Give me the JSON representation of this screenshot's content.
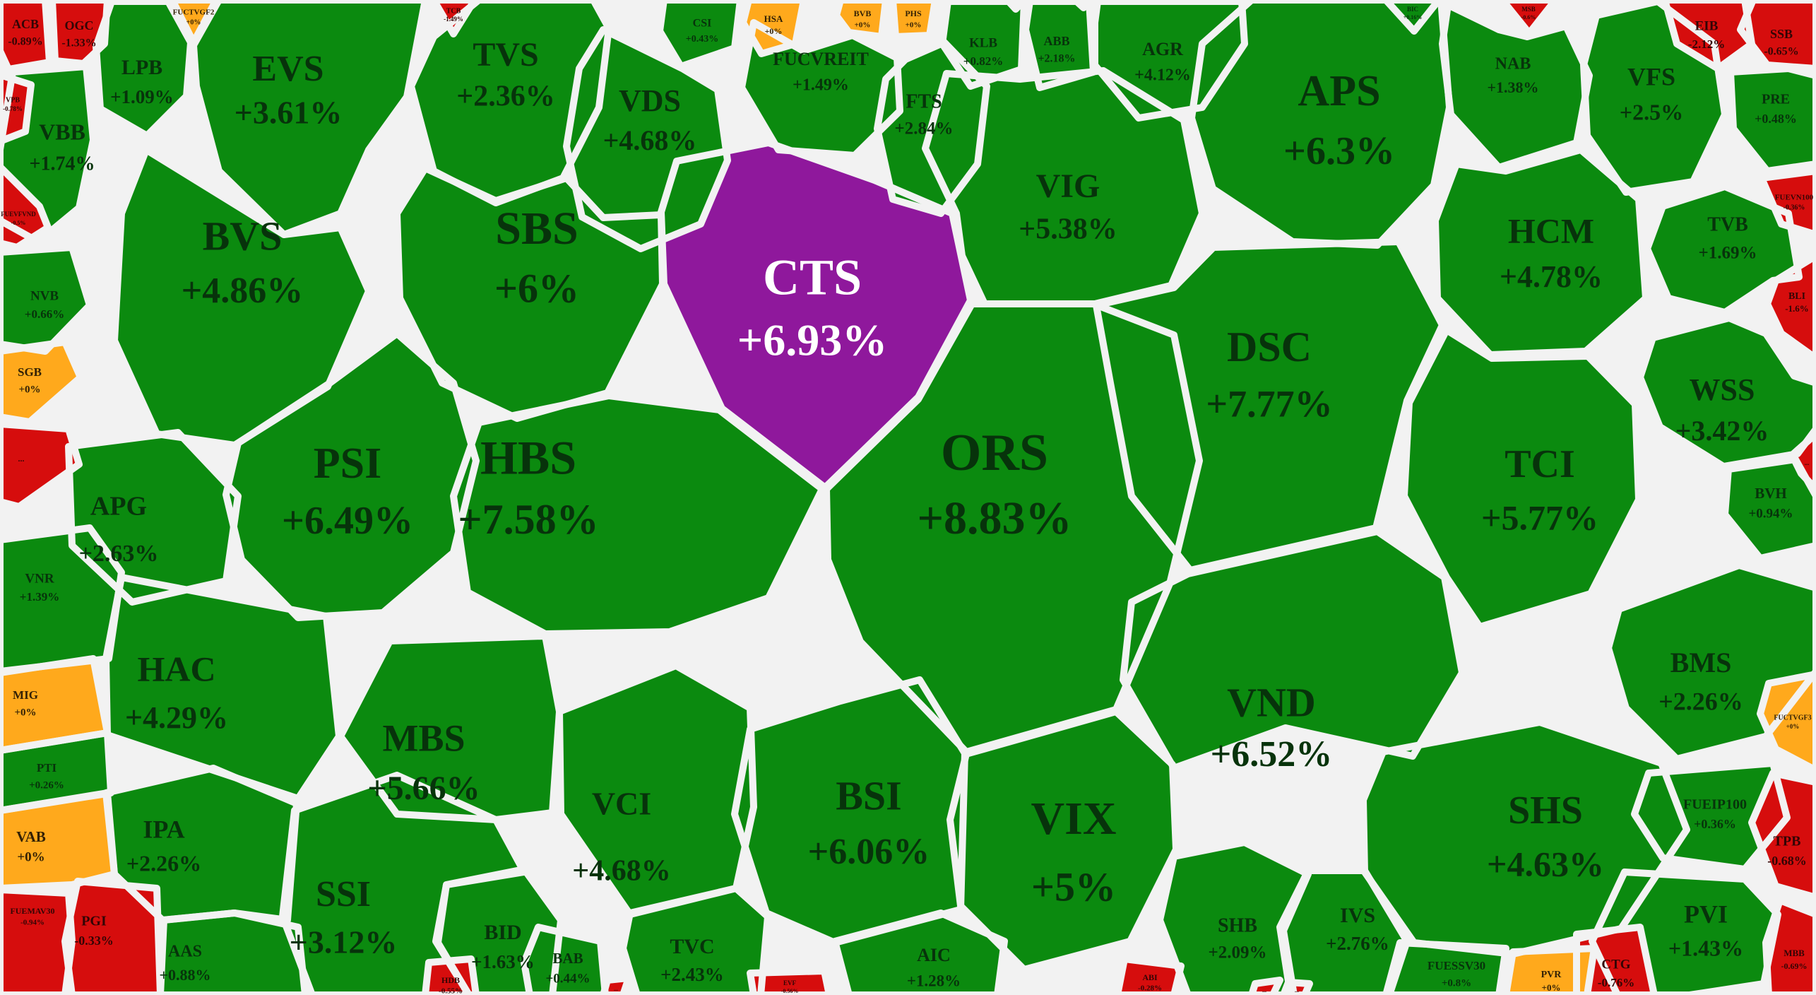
{
  "chart_data": {
    "type": "heatmap",
    "subtype": "voronoi-treemap-stock-heatmap",
    "colors": {
      "up": "#0b8a0f",
      "down": "#d60d0d",
      "unchanged": "#ffa91c",
      "ceiling": "#8f189c",
      "border": "#f2f2f2"
    },
    "text_colors": {
      "up": "#07330b",
      "down": "#330505",
      "unchanged": "#332105",
      "ceiling": "#ffffff"
    },
    "cells": [
      {
        "ticker": "CTS",
        "change": "+6.93%",
        "state": "ceiling"
      },
      {
        "ticker": "ORS",
        "change": "+8.83%",
        "state": "up"
      },
      {
        "ticker": "HBS",
        "change": "+7.58%",
        "state": "up"
      },
      {
        "ticker": "SBS",
        "change": "+6%",
        "state": "up"
      },
      {
        "ticker": "PSI",
        "change": "+6.49%",
        "state": "up"
      },
      {
        "ticker": "BVS",
        "change": "+4.86%",
        "state": "up"
      },
      {
        "ticker": "EVS",
        "change": "+3.61%",
        "state": "up"
      },
      {
        "ticker": "TVS",
        "change": "+2.36%",
        "state": "up"
      },
      {
        "ticker": "VDS",
        "change": "+4.68%",
        "state": "up"
      },
      {
        "ticker": "VIG",
        "change": "+5.38%",
        "state": "up"
      },
      {
        "ticker": "APS",
        "change": "+6.3%",
        "state": "up"
      },
      {
        "ticker": "DSC",
        "change": "+7.77%",
        "state": "up"
      },
      {
        "ticker": "HCM",
        "change": "+4.78%",
        "state": "up"
      },
      {
        "ticker": "TCI",
        "change": "+5.77%",
        "state": "up"
      },
      {
        "ticker": "VND",
        "change": "+6.52%",
        "state": "up"
      },
      {
        "ticker": "WSS",
        "change": "+3.42%",
        "state": "up"
      },
      {
        "ticker": "MBS",
        "change": "+5.66%",
        "state": "up"
      },
      {
        "ticker": "VIX",
        "change": "+5%",
        "state": "up"
      },
      {
        "ticker": "BSI",
        "change": "+6.06%",
        "state": "up"
      },
      {
        "ticker": "SHS",
        "change": "+4.63%",
        "state": "up"
      },
      {
        "ticker": "VCI",
        "change": "+4.68%",
        "state": "up"
      },
      {
        "ticker": "SSI",
        "change": "+3.12%",
        "state": "up"
      },
      {
        "ticker": "HAC",
        "change": "+4.29%",
        "state": "up"
      },
      {
        "ticker": "APG",
        "change": "+2.63%",
        "state": "up"
      },
      {
        "ticker": "IPA",
        "change": "+2.26%",
        "state": "up"
      },
      {
        "ticker": "VBB",
        "change": "+1.74%",
        "state": "up"
      },
      {
        "ticker": "LPB",
        "change": "+1.09%",
        "state": "up"
      },
      {
        "ticker": "FUCVREIT",
        "change": "+1.49%",
        "state": "up"
      },
      {
        "ticker": "FTS",
        "change": "+2.84%",
        "state": "up"
      },
      {
        "ticker": "AGR",
        "change": "+4.12%",
        "state": "up"
      },
      {
        "ticker": "NAB",
        "change": "+1.38%",
        "state": "up"
      },
      {
        "ticker": "VFS",
        "change": "+2.5%",
        "state": "up"
      },
      {
        "ticker": "TVB",
        "change": "+1.69%",
        "state": "up"
      },
      {
        "ticker": "BMS",
        "change": "+2.26%",
        "state": "up"
      },
      {
        "ticker": "AIC",
        "change": "+1.28%",
        "state": "up"
      },
      {
        "ticker": "TVC",
        "change": "+2.43%",
        "state": "up"
      },
      {
        "ticker": "BID",
        "change": "+1.63%",
        "state": "up"
      },
      {
        "ticker": "SHB",
        "change": "+2.09%",
        "state": "up"
      },
      {
        "ticker": "IVS",
        "change": "+2.76%",
        "state": "up"
      },
      {
        "ticker": "PVI",
        "change": "+1.43%",
        "state": "up"
      },
      {
        "ticker": "AAS",
        "change": "+0.88%",
        "state": "up"
      },
      {
        "ticker": "PGI",
        "change": "-0.33%",
        "state": "down"
      },
      {
        "ticker": "VNR",
        "change": "+1.39%",
        "state": "up"
      },
      {
        "ticker": "NVB",
        "change": "+0.66%",
        "state": "up"
      },
      {
        "ticker": "KLB",
        "change": "+0.82%",
        "state": "up"
      },
      {
        "ticker": "ABB",
        "change": "+2.18%",
        "state": "up"
      },
      {
        "ticker": "BVH",
        "change": "+0.94%",
        "state": "up"
      },
      {
        "ticker": "PRE",
        "change": "+0.48%",
        "state": "up"
      },
      {
        "ticker": "FUEIP100",
        "change": "+0.36%",
        "state": "up"
      },
      {
        "ticker": "FUESSV30",
        "change": "+0.8%",
        "state": "up"
      },
      {
        "ticker": "ACB",
        "change": "-0.89%",
        "state": "down"
      },
      {
        "ticker": "OGC",
        "change": "-1.33%",
        "state": "down"
      },
      {
        "ticker": "EIB",
        "change": "-2.12%",
        "state": "down"
      },
      {
        "ticker": "SSB",
        "change": "-0.65%",
        "state": "down"
      },
      {
        "ticker": "TPB",
        "change": "-0.68%",
        "state": "down"
      },
      {
        "ticker": "CTG",
        "change": "-0.76%",
        "state": "down"
      },
      {
        "ticker": "MBB",
        "change": "-0.69%",
        "state": "down"
      },
      {
        "ticker": "CSI",
        "change": "+0.43%",
        "state": "up"
      },
      {
        "ticker": "BAB",
        "change": "+0.44%",
        "state": "up"
      },
      {
        "ticker": "PTI",
        "change": "+0.26%",
        "state": "up"
      },
      {
        "ticker": "SGB",
        "change": "+0%",
        "state": "unchanged"
      },
      {
        "ticker": "MIG",
        "change": "+0%",
        "state": "unchanged"
      },
      {
        "ticker": "VAB",
        "change": "+0%",
        "state": "unchanged"
      },
      {
        "ticker": "HSA",
        "change": "+0%",
        "state": "unchanged"
      },
      {
        "ticker": "BVB",
        "change": "+0%",
        "state": "unchanged"
      },
      {
        "ticker": "PHS",
        "change": "+0%",
        "state": "unchanged"
      },
      {
        "ticker": "PVR",
        "change": "+0%",
        "state": "unchanged"
      },
      {
        "ticker": "FUCTVGF2",
        "change": "+0%",
        "state": "unchanged"
      },
      {
        "ticker": "FUCTVGF3",
        "change": "+0%",
        "state": "unchanged"
      },
      {
        "ticker": "VPB",
        "change": "-0.78%",
        "state": "down"
      },
      {
        "ticker": "FUEVFVND",
        "change": "-0.5%",
        "state": "down"
      },
      {
        "ticker": "FUEMAV30",
        "change": "-0.94%",
        "state": "down"
      },
      {
        "ticker": "FUEVN100",
        "change": "-0.36%",
        "state": "down"
      },
      {
        "ticker": "TCB",
        "change": "-1.49%",
        "state": "down"
      },
      {
        "ticker": "BIC",
        "change": "+0.16%",
        "state": "up"
      },
      {
        "ticker": "MSB",
        "change": "-0.6%",
        "state": "down"
      },
      {
        "ticker": "BLI",
        "change": "-1.6%",
        "state": "down"
      },
      {
        "ticker": "HDB",
        "change": "-0.55%",
        "state": "down"
      },
      {
        "ticker": "ABI",
        "change": "-0.28%",
        "state": "down"
      },
      {
        "ticker": "EVF",
        "change": "-0.56%",
        "state": "down"
      },
      {
        "ticker": "...",
        "change": "",
        "state": "down"
      },
      {
        "ticker": "...",
        "change": "",
        "state": "down"
      },
      {
        "ticker": "...",
        "change": "",
        "state": "down"
      },
      {
        "ticker": "...",
        "change": "",
        "state": "down"
      },
      {
        "ticker": "...",
        "change": "",
        "state": "down"
      },
      {
        "ticker": "",
        "change": "",
        "state": "unchanged"
      },
      {
        "ticker": "",
        "change": "",
        "state": "down"
      }
    ]
  }
}
